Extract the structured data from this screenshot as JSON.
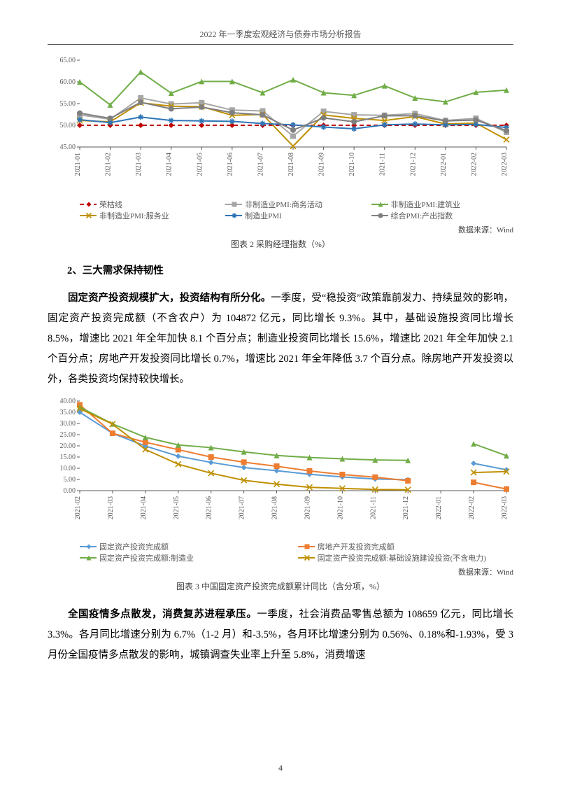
{
  "header": "2022 年一季度宏观经济与债券市场分析报告",
  "page_number": "4",
  "chart2": {
    "type": "line",
    "background_color": "#ffffff",
    "categories": [
      "2021-01",
      "2021-02",
      "2021-03",
      "2021-04",
      "2021-05",
      "2021-06",
      "2021-07",
      "2021-08",
      "2021-09",
      "2021-10",
      "2021-11",
      "2021-12",
      "2022-01",
      "2022-02",
      "2022-03"
    ],
    "ylim": [
      45,
      65
    ],
    "ytick_step": 5,
    "y_ticks": [
      "45.00",
      "50.00",
      "55.00",
      "60.00",
      "65.00"
    ],
    "label_fontsize": 10,
    "tick_fontsize": 10,
    "tick_color": "#595959",
    "grid_on": false,
    "xaxis_rotation": 90,
    "line_width": 2,
    "marker_size": 4,
    "series": [
      {
        "name": "荣枯线",
        "color": "#c00000",
        "dash": "6,4",
        "marker": "diamond",
        "data": [
          50,
          50,
          50,
          50,
          50,
          50,
          50,
          50,
          50,
          50,
          50,
          50,
          50,
          50,
          50
        ]
      },
      {
        "name": "非制造业PMI:商务活动",
        "color": "#a6a6a6",
        "dash": "",
        "marker": "square",
        "data": [
          52.4,
          51.4,
          56.3,
          54.9,
          55.2,
          53.5,
          53.3,
          47.5,
          53.2,
          52.4,
          52.3,
          52.7,
          51.1,
          51.6,
          48.4
        ]
      },
      {
        "name": "非制造业PMI:建筑业",
        "color": "#70ad47",
        "dash": "",
        "marker": "triangle",
        "data": [
          60.0,
          54.7,
          62.3,
          57.4,
          60.1,
          60.1,
          57.5,
          60.5,
          57.5,
          56.9,
          59.1,
          56.3,
          55.4,
          57.6,
          58.1
        ]
      },
      {
        "name": "非制造业PMI:服务业",
        "color": "#bf8f00",
        "dash": "",
        "marker": "x",
        "data": [
          51.1,
          50.8,
          55.2,
          54.4,
          54.3,
          52.3,
          52.5,
          45.2,
          52.4,
          51.6,
          51.1,
          52.0,
          50.3,
          50.5,
          46.7
        ]
      },
      {
        "name": "制造业PMI",
        "color": "#2e75b6",
        "dash": "",
        "marker": "star",
        "data": [
          51.3,
          50.6,
          51.9,
          51.1,
          51.0,
          50.9,
          50.4,
          50.1,
          49.6,
          49.2,
          50.1,
          50.3,
          50.1,
          50.2,
          49.5
        ]
      },
      {
        "name": "综合PMI:产出指数",
        "color": "#7f7f7f",
        "dash": "",
        "marker": "circle",
        "data": [
          52.8,
          51.6,
          55.3,
          53.8,
          54.2,
          52.9,
          52.4,
          48.9,
          51.7,
          50.8,
          52.2,
          52.2,
          51.0,
          51.2,
          48.8
        ]
      }
    ],
    "source": "数据来源：Wind",
    "source_fontsize": 11,
    "caption": "图表 2 采购经理指数（%）",
    "caption_fontsize": 12
  },
  "section2": {
    "heading": "2、三大需求保持韧性",
    "para1_bold": "固定资产投资规模扩大，投资结构有所分化。",
    "para1_rest": "一季度，受“稳投资”政策靠前发力、持续显效的影响，固定资产投资完成额（不含农户）为 104872 亿元，同比增长 9.3%。其中，基础设施投资同比增长 8.5%，增速比 2021 年全年加快 8.1 个百分点；制造业投资同比增长 15.6%，增速比 2021 年全年加快 2.1 个百分点；房地产开发投资同比增长 0.7%，增速比 2021 年全年降低 3.7 个百分点。除房地产开发投资以外，各类投资均保持较快增长。"
  },
  "chart3": {
    "type": "line",
    "background_color": "#ffffff",
    "categories": [
      "2021-02",
      "2021-03",
      "2021-04",
      "2021-05",
      "2021-06",
      "2021-07",
      "2021-08",
      "2021-09",
      "2021-10",
      "2021-11",
      "2021-12",
      "2022-01",
      "2022-02",
      "2022-03"
    ],
    "ylim": [
      0,
      40
    ],
    "ytick_step": 5,
    "y_ticks": [
      "0.00",
      "5.00",
      "10.00",
      "15.00",
      "20.00",
      "25.00",
      "30.00",
      "35.00",
      "40.00"
    ],
    "label_fontsize": 10,
    "tick_fontsize": 10,
    "tick_color": "#595959",
    "grid_on": false,
    "xaxis_rotation": 90,
    "gap_index": 11,
    "line_width": 2,
    "marker_size": 4,
    "series": [
      {
        "name": "固定资产投资完成额",
        "color": "#5b9bd5",
        "marker": "diamond",
        "data": [
          35.0,
          25.6,
          19.9,
          15.4,
          12.6,
          10.3,
          8.9,
          7.3,
          6.1,
          5.2,
          4.9,
          null,
          12.2,
          9.3
        ]
      },
      {
        "name": "房地产开发投资完成额",
        "color": "#ed7d31",
        "marker": "square",
        "data": [
          38.3,
          25.6,
          21.6,
          18.3,
          15.0,
          12.7,
          10.9,
          8.8,
          7.2,
          6.0,
          4.4,
          null,
          3.7,
          0.7
        ]
      },
      {
        "name": "固定资产投资完成额:制造业",
        "color": "#70ad47",
        "marker": "triangle",
        "data": [
          37.3,
          29.8,
          23.8,
          20.4,
          19.2,
          17.3,
          15.7,
          14.8,
          14.2,
          13.7,
          13.5,
          null,
          20.9,
          15.6
        ]
      },
      {
        "name": "固定资产投资完成额:基础设施建设投资(不含电力)",
        "color": "#bf8f00",
        "marker": "x",
        "data": [
          36.6,
          29.7,
          18.4,
          11.8,
          7.8,
          4.6,
          2.9,
          1.5,
          1.0,
          0.5,
          0.4,
          null,
          8.1,
          8.5
        ]
      }
    ],
    "source": "数据来源：Wind",
    "source_fontsize": 11,
    "caption": "图表 3 中国固定资产投资完成额累计同比（含分项，%）",
    "caption_fontsize": 12
  },
  "section3": {
    "para1_bold": "全国疫情多点散发，消费复苏进程承压。",
    "para1_rest": "一季度，社会消费品零售总额为 108659 亿元，同比增长 3.3%。各月同比增速分别为 6.7%（1-2 月）和-3.5%，各月环比增速分别为 0.56%、0.18%和-1.93%，受 3 月份全国疫情多点散发的影响，城镇调查失业率上升至 5.8%，消费增速"
  }
}
